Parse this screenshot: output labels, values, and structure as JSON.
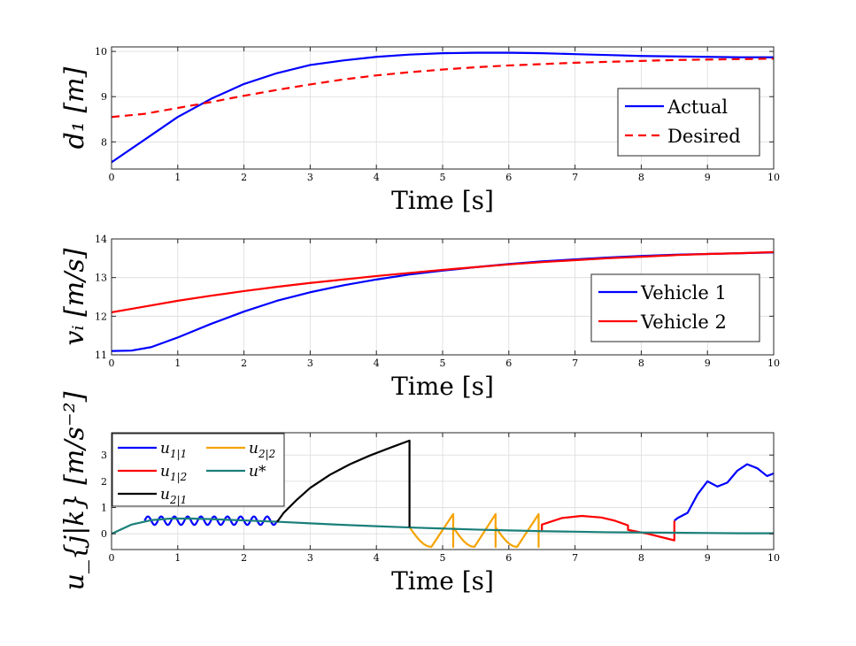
{
  "figure": {
    "background": "#ffffff"
  },
  "chart_data": [
    {
      "type": "line",
      "xlabel": "Time [s]",
      "ylabel": "d₁ [m]",
      "xlim": [
        0,
        10
      ],
      "ylim": [
        7.4,
        10.1
      ],
      "xticks": [
        0,
        1,
        2,
        3,
        4,
        5,
        6,
        7,
        8,
        9,
        10
      ],
      "xtick_labels": [
        "0",
        "1",
        "2",
        "3",
        "4",
        "5",
        "6",
        "7",
        "8",
        "9",
        "10"
      ],
      "yticks": [
        8,
        9,
        10
      ],
      "ytick_labels": [
        "8",
        "9",
        "10"
      ],
      "grid": true,
      "legend_position": "bottom-right",
      "series": [
        {
          "name": "Actual",
          "color": "#0000ff",
          "dash": "solid",
          "x": [
            0,
            0.5,
            1,
            1.5,
            2,
            2.5,
            3,
            3.5,
            4,
            4.5,
            5,
            5.5,
            6,
            6.5,
            7,
            7.5,
            8,
            8.5,
            9,
            9.5,
            10
          ],
          "y": [
            7.55,
            8.05,
            8.55,
            8.95,
            9.28,
            9.52,
            9.7,
            9.8,
            9.88,
            9.93,
            9.96,
            9.97,
            9.97,
            9.96,
            9.94,
            9.92,
            9.9,
            9.89,
            9.88,
            9.87,
            9.87
          ]
        },
        {
          "name": "Desired",
          "color": "#ff0000",
          "dash": "dashed",
          "x": [
            0,
            0.5,
            1,
            1.5,
            2,
            2.5,
            3,
            3.5,
            4,
            4.5,
            5,
            5.5,
            6,
            6.5,
            7,
            7.5,
            8,
            8.5,
            9,
            9.5,
            10
          ],
          "y": [
            8.55,
            8.62,
            8.75,
            8.88,
            9.02,
            9.15,
            9.27,
            9.38,
            9.47,
            9.54,
            9.6,
            9.65,
            9.69,
            9.72,
            9.75,
            9.77,
            9.79,
            9.81,
            9.82,
            9.83,
            9.84
          ]
        }
      ]
    },
    {
      "type": "line",
      "xlabel": "Time [s]",
      "ylabel": "vᵢ [m/s]",
      "xlim": [
        0,
        10
      ],
      "ylim": [
        11,
        14
      ],
      "xticks": [
        0,
        1,
        2,
        3,
        4,
        5,
        6,
        7,
        8,
        9,
        10
      ],
      "xtick_labels": [
        "0",
        "1",
        "2",
        "3",
        "4",
        "5",
        "6",
        "7",
        "8",
        "9",
        "10"
      ],
      "yticks": [
        11,
        12,
        13,
        14
      ],
      "ytick_labels": [
        "11",
        "12",
        "13",
        "14"
      ],
      "grid": true,
      "legend_position": "bottom-right",
      "series": [
        {
          "name": "Vehicle 1",
          "color": "#0000ff",
          "dash": "solid",
          "x": [
            0,
            0.3,
            0.6,
            1,
            1.5,
            2,
            2.5,
            3,
            3.5,
            4,
            4.5,
            5,
            5.5,
            6,
            6.5,
            7,
            7.5,
            8,
            8.5,
            9,
            9.5,
            10
          ],
          "y": [
            11.1,
            11.11,
            11.2,
            11.45,
            11.8,
            12.12,
            12.4,
            12.62,
            12.8,
            12.95,
            13.08,
            13.18,
            13.27,
            13.35,
            13.42,
            13.47,
            13.52,
            13.56,
            13.59,
            13.61,
            13.63,
            13.65
          ]
        },
        {
          "name": "Vehicle 2",
          "color": "#ff0000",
          "dash": "solid",
          "x": [
            0,
            0.5,
            1,
            1.5,
            2,
            2.5,
            3,
            3.5,
            4,
            4.5,
            5,
            5.5,
            6,
            6.5,
            7,
            7.5,
            8,
            8.5,
            9,
            9.5,
            10
          ],
          "y": [
            12.1,
            12.25,
            12.4,
            12.53,
            12.65,
            12.76,
            12.86,
            12.95,
            13.04,
            13.12,
            13.2,
            13.27,
            13.34,
            13.4,
            13.45,
            13.5,
            13.54,
            13.58,
            13.61,
            13.63,
            13.66
          ]
        }
      ]
    },
    {
      "type": "line",
      "xlabel": "Time [s]",
      "ylabel": "u_{j|k} [m/s⁻²]",
      "xlim": [
        0,
        10
      ],
      "ylim": [
        -0.6,
        3.85
      ],
      "xticks": [
        0,
        1,
        2,
        3,
        4,
        5,
        6,
        7,
        8,
        9,
        10
      ],
      "xtick_labels": [
        "0",
        "1",
        "2",
        "3",
        "4",
        "5",
        "6",
        "7",
        "8",
        "9",
        "10"
      ],
      "yticks": [
        0,
        1,
        2,
        3
      ],
      "ytick_labels": [
        "0",
        "1",
        "2",
        "3"
      ],
      "grid": true,
      "legend_position": "top-left",
      "legend_columns": 2,
      "series": [
        {
          "name": "u",
          "subscript": "1|1",
          "color": "#0000ff",
          "segments": [
            {
              "kind": "oscillation",
              "x0": 0.5,
              "x1": 2.5,
              "base": 0.5,
              "amplitude": 0.16,
              "period": 0.2
            },
            {
              "kind": "points",
              "x": [
                8.5,
                8.55,
                8.7,
                8.85,
                9.0,
                9.15,
                9.3,
                9.45,
                9.6,
                9.75,
                9.9,
                10
              ],
              "y": [
                0.5,
                0.6,
                0.8,
                1.5,
                2.0,
                1.8,
                1.95,
                2.4,
                2.65,
                2.5,
                2.2,
                2.3
              ]
            }
          ]
        },
        {
          "name": "u",
          "subscript": "2|2",
          "color": "#f5a300",
          "segments": [
            {
              "kind": "sawtooth",
              "x_starts": [
                4.5,
                5.16,
                5.8,
                6.45
              ],
              "x_ends": [
                5.16,
                5.8,
                6.45,
                6.5
              ],
              "high": 0.75,
              "low": -0.5
            }
          ]
        },
        {
          "name": "u",
          "subscript": "1|2",
          "color": "#ff0000",
          "segments": [
            {
              "kind": "points",
              "x": [
                6.5,
                6.5,
                6.8,
                7.1,
                7.4,
                7.6,
                7.8,
                7.8,
                8.1,
                8.5,
                8.5
              ],
              "y": [
                0.1,
                0.35,
                0.6,
                0.68,
                0.62,
                0.5,
                0.32,
                0.15,
                0.0,
                -0.25,
                0.5
              ]
            }
          ]
        },
        {
          "name": "u*",
          "subscript": "",
          "color": "#1a7f7a",
          "segments": [
            {
              "kind": "points",
              "x": [
                0,
                0.3,
                0.6,
                0.9,
                1.2,
                1.5,
                2,
                2.5,
                3,
                3.5,
                4,
                4.5,
                5,
                5.5,
                6,
                6.5,
                7,
                7.5,
                8,
                8.5,
                9,
                9.5,
                10
              ],
              "y": [
                0,
                0.35,
                0.52,
                0.58,
                0.58,
                0.56,
                0.51,
                0.46,
                0.4,
                0.34,
                0.29,
                0.24,
                0.2,
                0.16,
                0.13,
                0.1,
                0.08,
                0.06,
                0.05,
                0.04,
                0.03,
                0.02,
                0.02
              ]
            }
          ]
        },
        {
          "name": "u",
          "subscript": "2|1",
          "color": "#000000",
          "segments": [
            {
              "kind": "points",
              "x": [
                2.5,
                2.6,
                2.8,
                3.0,
                3.3,
                3.6,
                3.9,
                4.2,
                4.5,
                4.5
              ],
              "y": [
                0.45,
                0.8,
                1.3,
                1.75,
                2.25,
                2.65,
                2.98,
                3.27,
                3.55,
                0.25
              ]
            }
          ]
        }
      ]
    }
  ]
}
